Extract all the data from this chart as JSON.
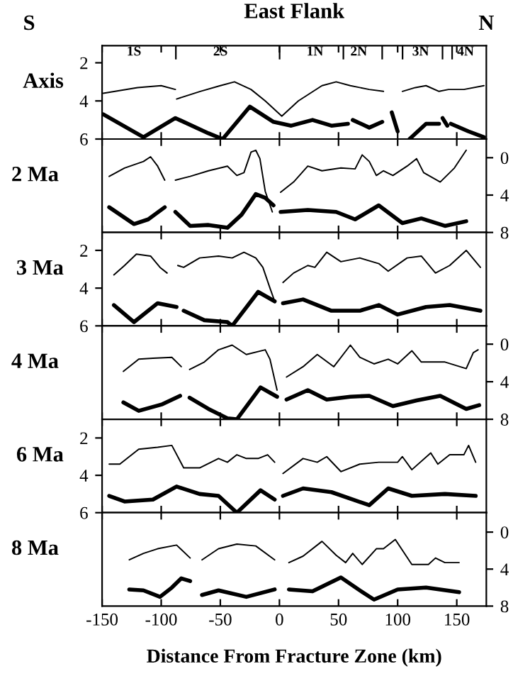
{
  "chart_data": [
    {
      "type": "line",
      "title": "East Flank",
      "ylabel": "Axis",
      "xlim": [
        -150,
        175
      ],
      "ylim": [
        6,
        1.1
      ],
      "yticks": [
        2,
        4,
        6
      ],
      "tick_labels": "y",
      "grid": false,
      "annotations": [
        "S",
        "N",
        "1S",
        "2S",
        "1N",
        "2N",
        "3N",
        "4N"
      ],
      "series": [
        {
          "color": "#000000",
          "x": [
            -149,
            -120,
            -100,
            -88,
            -87.5,
            -87,
            -67,
            -50,
            -38,
            -24,
            -12,
            2,
            16,
            36,
            48,
            60,
            76,
            88,
            96,
            104,
            115,
            124,
            135,
            143,
            156,
            173
          ],
          "values": [
            3.6,
            3.3,
            3.2,
            3.4,
            null,
            3.9,
            3.5,
            3.2,
            3.0,
            3.4,
            4.0,
            4.8,
            4.0,
            3.2,
            3.0,
            3.2,
            3.4,
            3.5,
            null,
            3.5,
            3.3,
            3.2,
            3.5,
            3.4,
            3.4,
            3.2
          ]
        },
        {
          "color": "#000000",
          "x": [
            -149,
            -115,
            -88,
            -60,
            -48,
            -25,
            -5,
            10,
            28,
            44,
            58,
            60,
            62,
            76,
            87,
            91,
            95,
            100,
            105,
            110,
            124,
            135,
            136.5,
            138,
            142,
            143.5,
            145,
            160,
            173
          ],
          "values": [
            4.7,
            5.9,
            4.9,
            5.7,
            6.0,
            4.3,
            5.1,
            5.3,
            5.0,
            5.3,
            5.2,
            null,
            5.0,
            5.4,
            5.1,
            null,
            4.6,
            5.6,
            null,
            6.0,
            5.2,
            5.2,
            null,
            4.9,
            5.3,
            null,
            5.2,
            5.6,
            5.9
          ]
        }
      ]
    },
    {
      "type": "line",
      "ylabel": "2 Ma",
      "xlim": [
        -150,
        175
      ],
      "y2lim": [
        8,
        -2
      ],
      "y2ticks": [
        0,
        4,
        8
      ],
      "tick_labels": "y",
      "grid": false,
      "series": [
        {
          "color": "#000000",
          "axis": "y2",
          "x": [
            -144,
            -131,
            -115,
            -109,
            -103,
            -97,
            -92,
            -88,
            -75.5,
            -60,
            -44,
            -36,
            -30,
            -24,
            -20,
            -16.5,
            -12,
            -6,
            -2,
            1,
            12,
            24,
            36,
            52,
            64,
            70,
            76,
            82,
            88,
            96,
            108,
            116,
            122,
            136,
            148,
            158
          ],
          "values": [
            2.0,
            1.1,
            0.4,
            -0.1,
            0.9,
            2.4,
            null,
            2.4,
            2.0,
            1.4,
            0.9,
            1.9,
            1.6,
            -0.6,
            -0.8,
            0.1,
            3.6,
            5.8,
            null,
            3.7,
            2.6,
            0.9,
            1.4,
            1.1,
            1.2,
            -0.3,
            0.4,
            1.9,
            1.4,
            1.9,
            0.9,
            0.1,
            1.6,
            2.6,
            1.1,
            -0.8
          ]
        },
        {
          "color": "#000000",
          "axis": "y2",
          "x": [
            -144,
            -123,
            -111,
            -97,
            -92,
            -88,
            -75.5,
            -60,
            -44,
            -32,
            -20,
            -12,
            -5,
            -2,
            1,
            24,
            48,
            64,
            84,
            104,
            120,
            140,
            158
          ],
          "values": [
            5.3,
            7.1,
            6.6,
            5.3,
            null,
            5.8,
            7.3,
            7.2,
            7.5,
            6.1,
            3.9,
            4.3,
            5.1,
            null,
            5.8,
            5.6,
            5.8,
            6.6,
            5.1,
            7.0,
            6.5,
            7.3,
            6.8
          ]
        }
      ]
    },
    {
      "type": "line",
      "ylabel": "3 Ma",
      "xlim": [
        -150,
        175
      ],
      "ylim": [
        6,
        1.05
      ],
      "yticks": [
        2,
        4,
        6
      ],
      "tick_labels": "y",
      "grid": false,
      "series": [
        {
          "color": "#000000",
          "x": [
            -140,
            -131,
            -121,
            -109,
            -101,
            -95,
            -88,
            -86,
            -81,
            -67.5,
            -51.5,
            -40,
            -30,
            -20,
            -14,
            -8,
            -4,
            0,
            3,
            12,
            24,
            30,
            40,
            52,
            68,
            84,
            92,
            108,
            120,
            132,
            144,
            158,
            170
          ],
          "values": [
            3.3,
            2.8,
            2.2,
            2.3,
            2.9,
            3.2,
            null,
            2.8,
            2.9,
            2.4,
            2.3,
            2.4,
            2.1,
            2.4,
            2.9,
            4.0,
            4.7,
            null,
            3.7,
            3.2,
            2.8,
            2.9,
            2.1,
            2.6,
            2.4,
            2.7,
            3.1,
            2.4,
            2.3,
            3.2,
            2.8,
            2.0,
            2.9
          ]
        },
        {
          "color": "#000000",
          "x": [
            -140,
            -123,
            -103,
            -87,
            -84,
            -81,
            -63.5,
            -44,
            -40,
            -18,
            -4,
            0,
            3,
            20,
            44,
            68,
            84,
            100,
            124,
            144,
            170
          ],
          "values": [
            4.9,
            5.8,
            4.8,
            5.0,
            null,
            5.2,
            5.7,
            5.8,
            6.0,
            4.2,
            4.7,
            null,
            4.8,
            4.6,
            5.2,
            5.2,
            4.9,
            5.4,
            5.0,
            4.9,
            5.2
          ]
        }
      ]
    },
    {
      "type": "line",
      "ylabel": "4 Ma",
      "xlim": [
        -150,
        175
      ],
      "y2lim": [
        8,
        -1.95
      ],
      "y2ticks": [
        0,
        4,
        8
      ],
      "tick_labels": "y",
      "grid": false,
      "series": [
        {
          "color": "#000000",
          "axis": "y2",
          "x": [
            -132,
            -119,
            -107,
            -91,
            -83,
            -80,
            -76,
            -63.5,
            -51.5,
            -40,
            -28,
            -12,
            -8,
            -2,
            2,
            6,
            20,
            32,
            46,
            60,
            68,
            80,
            92,
            100,
            112,
            120,
            140,
            158,
            164,
            168
          ],
          "values": [
            2.9,
            1.6,
            1.5,
            1.4,
            2.4,
            null,
            2.7,
            1.9,
            0.6,
            0.1,
            1.1,
            0.6,
            1.6,
            4.9,
            null,
            3.5,
            2.4,
            1.1,
            2.4,
            0.1,
            1.4,
            2.1,
            1.6,
            2.1,
            0.7,
            1.9,
            1.9,
            2.6,
            0.9,
            0.6
          ]
        },
        {
          "color": "#000000",
          "axis": "y2",
          "x": [
            -132,
            -119,
            -99,
            -84,
            -80,
            -76,
            -60,
            -44,
            -36,
            -16,
            -2,
            2,
            6,
            24,
            40,
            60,
            76,
            96,
            116,
            136,
            158,
            169
          ],
          "values": [
            6.2,
            7.1,
            6.4,
            5.5,
            null,
            5.7,
            6.9,
            7.9,
            8.0,
            4.6,
            5.6,
            null,
            5.9,
            4.9,
            5.9,
            5.6,
            5.5,
            6.6,
            6.0,
            5.5,
            6.9,
            6.5
          ]
        }
      ]
    },
    {
      "type": "line",
      "ylabel": "6 Ma",
      "xlim": [
        -150,
        175
      ],
      "ylim": [
        6,
        1.0
      ],
      "yticks": [
        2,
        4,
        6
      ],
      "tick_labels": "y",
      "grid": false,
      "series": [
        {
          "color": "#000000",
          "x": [
            -144,
            -135,
            -119,
            -103,
            -91,
            -81,
            -67.5,
            -51.5,
            -44,
            -36,
            -28,
            -18,
            -10,
            -4,
            0,
            3,
            20,
            32,
            40,
            52,
            68,
            84,
            100,
            104,
            112,
            128,
            134,
            144,
            156,
            160,
            166
          ],
          "values": [
            3.4,
            3.4,
            2.6,
            2.5,
            2.4,
            3.6,
            3.6,
            3.1,
            3.3,
            2.9,
            3.1,
            3.1,
            2.9,
            3.3,
            null,
            3.9,
            3.1,
            3.3,
            3.0,
            3.8,
            3.4,
            3.3,
            3.3,
            3.0,
            3.7,
            2.8,
            3.4,
            2.9,
            2.9,
            2.4,
            3.3
          ]
        },
        {
          "color": "#000000",
          "x": [
            -144,
            -131,
            -107,
            -87,
            -67.5,
            -51.5,
            -36,
            -16,
            -4,
            0,
            3,
            20,
            44,
            76,
            92,
            112,
            140,
            166
          ],
          "values": [
            5.1,
            5.4,
            5.3,
            4.6,
            5.0,
            5.1,
            6.0,
            4.8,
            5.3,
            null,
            5.1,
            4.7,
            4.9,
            5.6,
            4.7,
            5.1,
            5.0,
            5.1
          ]
        }
      ]
    },
    {
      "type": "line",
      "ylabel": "8 Ma",
      "xlabel": "Distance From Fracture Zone (km)",
      "xlim": [
        -150,
        175
      ],
      "xticks": [
        -150,
        -100,
        -50,
        0,
        50,
        100,
        150
      ],
      "y2lim": [
        8,
        -2.1
      ],
      "y2ticks": [
        0,
        4,
        8
      ],
      "grid": false,
      "series": [
        {
          "color": "#000000",
          "axis": "y2",
          "x": [
            -127,
            -115,
            -103,
            -87,
            -75.5,
            -70,
            -65.5,
            -51.5,
            -36,
            -20,
            -4,
            2,
            8,
            20,
            36,
            48,
            56,
            62,
            70,
            82,
            88,
            98,
            112,
            126,
            132,
            140,
            152
          ],
          "values": [
            3.0,
            2.3,
            1.8,
            1.4,
            2.8,
            null,
            3.0,
            1.8,
            1.3,
            1.5,
            3.0,
            null,
            3.3,
            2.6,
            1.0,
            2.5,
            3.3,
            2.3,
            3.5,
            1.8,
            1.8,
            0.8,
            3.5,
            3.5,
            2.8,
            3.3,
            3.3
          ]
        },
        {
          "color": "#000000",
          "axis": "y2",
          "x": [
            -127,
            -115,
            -101,
            -91,
            -83,
            -75.5,
            -70,
            -65.5,
            -51.5,
            -28,
            -4,
            2,
            8,
            28,
            52,
            68,
            80,
            100,
            124,
            152
          ],
          "values": [
            6.2,
            6.3,
            7.0,
            6.0,
            5.0,
            5.3,
            null,
            6.8,
            6.3,
            7.0,
            6.2,
            null,
            6.2,
            6.4,
            4.9,
            6.3,
            7.3,
            6.2,
            6.0,
            6.5
          ]
        }
      ]
    }
  ]
}
